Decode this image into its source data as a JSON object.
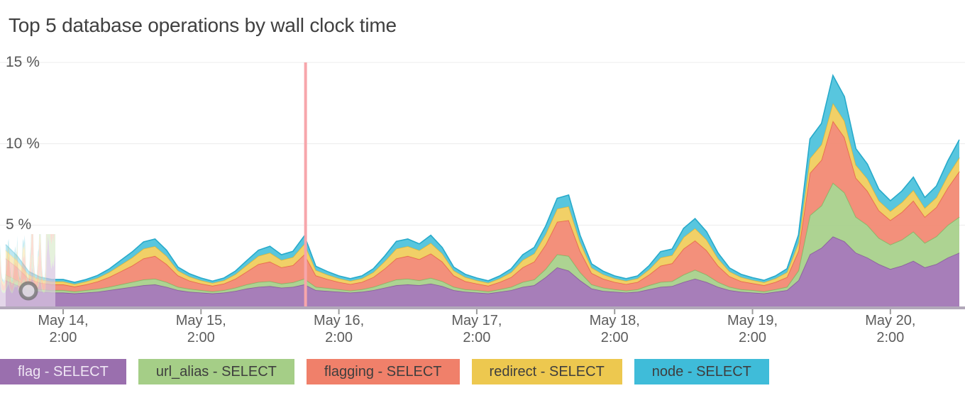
{
  "chart_data": {
    "type": "area",
    "stacked": true,
    "title": "Top 5 database operations by wall clock time",
    "xlabel": "",
    "ylabel": "",
    "y_unit": "%",
    "ylim": [
      0,
      15
    ],
    "grid": true,
    "legend_position": "bottom",
    "x_start": "May 13 16:00",
    "x_step_hours": 2,
    "y_ticks": [
      {
        "value": 15,
        "label": "15 %"
      },
      {
        "value": 10,
        "label": "10 %"
      },
      {
        "value": 5,
        "label": "5 %"
      }
    ],
    "x_ticks": [
      {
        "index": 5,
        "line1": "May 14,",
        "line2": "2:00"
      },
      {
        "index": 17,
        "line1": "May 15,",
        "line2": "2:00"
      },
      {
        "index": 29,
        "line1": "May 16,",
        "line2": "2:00"
      },
      {
        "index": 41,
        "line1": "May 17,",
        "line2": "2:00"
      },
      {
        "index": 53,
        "line1": "May 18,",
        "line2": "2:00"
      },
      {
        "index": 65,
        "line1": "May 19,",
        "line2": "2:00"
      },
      {
        "index": 77,
        "line1": "May 20,",
        "line2": "2:00"
      }
    ],
    "event_line": {
      "index": 26.1,
      "color": "#f7a6ab"
    },
    "axis": {
      "baseline_color": "#b2a8ba",
      "tick_color": "#9b9b9b",
      "gridline_color": "#ececec"
    },
    "series": [
      {
        "id": "flag-select",
        "legend_label": "flag - SELECT",
        "color": "#a277b5",
        "stroke": "#8a5aa0",
        "legend_bg": "#9a6fae",
        "legend_text": "#efe6f4",
        "values": [
          1.6,
          1.3,
          1.0,
          0.9,
          0.85,
          0.85,
          0.8,
          0.85,
          0.9,
          1.0,
          1.1,
          1.2,
          1.3,
          1.35,
          1.2,
          1.0,
          0.9,
          0.85,
          0.8,
          0.85,
          0.95,
          1.1,
          1.2,
          1.25,
          1.15,
          1.2,
          1.35,
          1.0,
          0.95,
          0.9,
          0.85,
          0.9,
          1.0,
          1.15,
          1.3,
          1.35,
          1.3,
          1.4,
          1.25,
          1.0,
          0.9,
          0.85,
          0.8,
          0.9,
          1.0,
          1.2,
          1.3,
          1.8,
          2.4,
          2.2,
          1.6,
          1.1,
          0.95,
          0.9,
          0.85,
          0.9,
          1.05,
          1.2,
          1.25,
          1.5,
          1.7,
          1.5,
          1.2,
          1.0,
          0.9,
          0.85,
          0.8,
          0.9,
          1.0,
          1.6,
          3.2,
          3.6,
          4.3,
          4.0,
          3.3,
          3.0,
          2.6,
          2.3,
          2.5,
          2.8,
          2.4,
          2.6,
          3.0,
          3.3
        ]
      },
      {
        "id": "url-alias-select",
        "legend_label": "url_alias - SELECT",
        "color": "#a9d18c",
        "stroke": "#84b968",
        "legend_bg": "#a5ce87",
        "legend_text": "#3e3e3e",
        "values": [
          0.35,
          0.3,
          0.2,
          0.15,
          0.15,
          0.15,
          0.12,
          0.15,
          0.18,
          0.2,
          0.25,
          0.3,
          0.35,
          0.35,
          0.3,
          0.2,
          0.18,
          0.15,
          0.12,
          0.15,
          0.2,
          0.25,
          0.3,
          0.3,
          0.25,
          0.28,
          0.35,
          0.2,
          0.18,
          0.15,
          0.12,
          0.15,
          0.2,
          0.28,
          0.35,
          0.35,
          0.3,
          0.35,
          0.3,
          0.2,
          0.15,
          0.15,
          0.12,
          0.15,
          0.2,
          0.3,
          0.35,
          0.5,
          0.8,
          0.9,
          0.5,
          0.25,
          0.2,
          0.15,
          0.12,
          0.15,
          0.25,
          0.3,
          0.3,
          0.45,
          0.55,
          0.45,
          0.3,
          0.2,
          0.15,
          0.15,
          0.12,
          0.15,
          0.2,
          0.6,
          2.4,
          2.6,
          3.3,
          3.0,
          2.2,
          2.0,
          1.6,
          1.5,
          1.6,
          1.8,
          1.5,
          1.7,
          2.0,
          2.2
        ]
      },
      {
        "id": "flagging-select",
        "legend_label": "flagging - SELECT",
        "color": "#f28a74",
        "stroke": "#e7664e",
        "legend_bg": "#f0806a",
        "legend_text": "#3e3e3e",
        "values": [
          1.0,
          0.8,
          0.5,
          0.4,
          0.35,
          0.35,
          0.3,
          0.35,
          0.45,
          0.6,
          0.8,
          1.0,
          1.3,
          1.4,
          1.1,
          0.7,
          0.5,
          0.4,
          0.35,
          0.4,
          0.55,
          0.8,
          1.1,
          1.2,
          1.0,
          1.05,
          1.5,
          0.7,
          0.55,
          0.45,
          0.4,
          0.45,
          0.6,
          0.9,
          1.3,
          1.4,
          1.3,
          1.5,
          1.2,
          0.7,
          0.5,
          0.4,
          0.35,
          0.45,
          0.6,
          0.9,
          1.1,
          1.5,
          2.0,
          2.2,
          1.3,
          0.7,
          0.55,
          0.45,
          0.4,
          0.45,
          0.65,
          1.0,
          1.1,
          1.6,
          1.8,
          1.5,
          1.0,
          0.65,
          0.5,
          0.42,
          0.38,
          0.45,
          0.6,
          1.2,
          2.6,
          2.8,
          3.8,
          3.4,
          2.4,
          2.1,
          1.7,
          1.5,
          1.7,
          1.9,
          1.6,
          1.8,
          2.3,
          2.8
        ]
      },
      {
        "id": "redirect-select",
        "legend_label": "redirect - SELECT",
        "color": "#f0cd5f",
        "stroke": "#e2b93b",
        "legend_bg": "#edc84f",
        "legend_text": "#3e3e3e",
        "values": [
          0.5,
          0.4,
          0.25,
          0.2,
          0.18,
          0.18,
          0.15,
          0.18,
          0.22,
          0.3,
          0.4,
          0.5,
          0.6,
          0.6,
          0.5,
          0.3,
          0.25,
          0.2,
          0.17,
          0.2,
          0.28,
          0.4,
          0.5,
          0.55,
          0.45,
          0.5,
          0.65,
          0.33,
          0.27,
          0.22,
          0.2,
          0.22,
          0.3,
          0.45,
          0.6,
          0.6,
          0.55,
          0.65,
          0.5,
          0.3,
          0.25,
          0.2,
          0.18,
          0.22,
          0.3,
          0.45,
          0.5,
          0.65,
          0.8,
          0.85,
          0.55,
          0.33,
          0.27,
          0.22,
          0.2,
          0.22,
          0.32,
          0.5,
          0.5,
          0.7,
          0.75,
          0.65,
          0.45,
          0.3,
          0.25,
          0.2,
          0.18,
          0.22,
          0.3,
          0.5,
          0.9,
          0.95,
          1.1,
          1.0,
          0.8,
          0.75,
          0.6,
          0.55,
          0.6,
          0.65,
          0.55,
          0.6,
          0.75,
          0.85
        ]
      },
      {
        "id": "node-select",
        "legend_label": "node - SELECT",
        "color": "#4fc3dc",
        "stroke": "#27aacb",
        "legend_bg": "#3fbcd9",
        "legend_text": "#3e3e3e",
        "values": [
          0.35,
          0.3,
          0.2,
          0.15,
          0.13,
          0.13,
          0.11,
          0.13,
          0.16,
          0.2,
          0.28,
          0.35,
          0.42,
          0.45,
          0.36,
          0.22,
          0.18,
          0.15,
          0.12,
          0.15,
          0.2,
          0.28,
          0.36,
          0.4,
          0.33,
          0.36,
          0.5,
          0.24,
          0.2,
          0.16,
          0.14,
          0.16,
          0.22,
          0.33,
          0.45,
          0.45,
          0.4,
          0.48,
          0.37,
          0.22,
          0.18,
          0.15,
          0.13,
          0.16,
          0.22,
          0.33,
          0.38,
          0.5,
          0.65,
          0.7,
          0.42,
          0.24,
          0.2,
          0.16,
          0.14,
          0.16,
          0.24,
          0.37,
          0.38,
          0.55,
          0.6,
          0.5,
          0.34,
          0.22,
          0.18,
          0.15,
          0.13,
          0.16,
          0.22,
          0.5,
          1.2,
          1.3,
          1.7,
          1.5,
          1.0,
          0.9,
          0.7,
          0.65,
          0.7,
          0.8,
          0.65,
          0.7,
          0.9,
          1.1
        ]
      }
    ]
  }
}
